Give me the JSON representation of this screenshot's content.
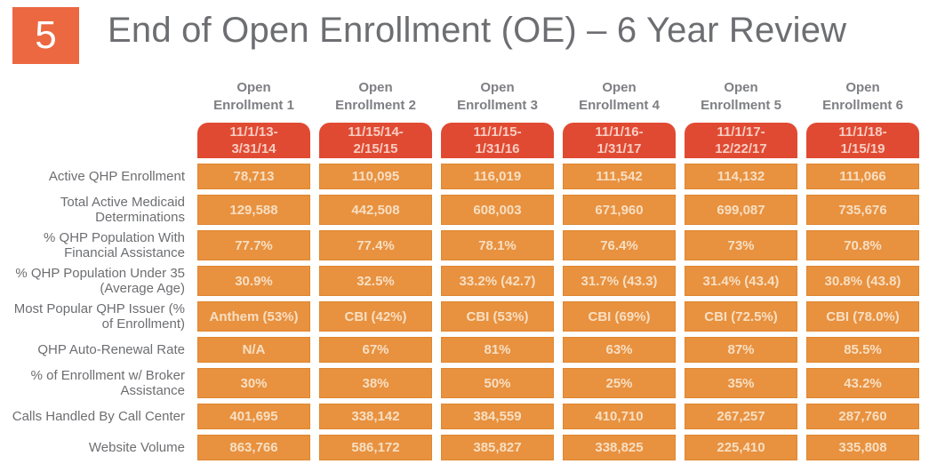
{
  "slide": {
    "number": "5",
    "title": "End of Open Enrollment (OE) – 6 Year Review"
  },
  "table": {
    "columns": [
      {
        "header": "Open\nEnrollment 1",
        "date": "11/1/13-\n3/31/14"
      },
      {
        "header": "Open\nEnrollment 2",
        "date": "11/15/14-\n2/15/15"
      },
      {
        "header": "Open\nEnrollment 3",
        "date": "11/1/15-\n1/31/16"
      },
      {
        "header": "Open\nEnrollment 4",
        "date": "11/1/16-\n1/31/17"
      },
      {
        "header": "Open\nEnrollment 5",
        "date": "11/1/17-\n12/22/17"
      },
      {
        "header": "Open\nEnrollment 6",
        "date": "11/1/18-\n1/15/19"
      }
    ],
    "rows": [
      {
        "label": "Active QHP Enrollment",
        "values": [
          "78,713",
          "110,095",
          "116,019",
          "111,542",
          "114,132",
          "111,066"
        ]
      },
      {
        "label": "Total Active Medicaid Determinations",
        "values": [
          "129,588",
          "442,508",
          "608,003",
          "671,960",
          "699,087",
          "735,676"
        ]
      },
      {
        "label": "% QHP Population With Financial Assistance",
        "values": [
          "77.7%",
          "77.4%",
          "78.1%",
          "76.4%",
          "73%",
          "70.8%"
        ]
      },
      {
        "label": "% QHP Population Under 35 (Average Age)",
        "values": [
          "30.9%",
          "32.5%",
          "33.2% (42.7)",
          "31.7% (43.3)",
          "31.4% (43.4)",
          "30.8% (43.8)"
        ]
      },
      {
        "label": "Most Popular QHP Issuer (% of Enrollment)",
        "values": [
          "Anthem (53%)",
          "CBI (42%)",
          "CBI (53%)",
          "CBI (69%)",
          "CBI (72.5%)",
          "CBI (78.0%)"
        ]
      },
      {
        "label": "QHP Auto-Renewal Rate",
        "values": [
          "N/A",
          "67%",
          "81%",
          "63%",
          "87%",
          "85.5%"
        ]
      },
      {
        "label": "% of Enrollment w/ Broker Assistance",
        "values": [
          "30%",
          "38%",
          "50%",
          "25%",
          "35%",
          "43.2%"
        ]
      },
      {
        "label": "Calls Handled By Call Center",
        "values": [
          "401,695",
          "338,142",
          "384,559",
          "410,710",
          "267,257",
          "287,760"
        ]
      },
      {
        "label": "Website Volume",
        "values": [
          "863,766",
          "586,172",
          "385,827",
          "338,825",
          "225,410",
          "335,808"
        ]
      }
    ]
  },
  "colors": {
    "cell_orange": "#E8913F",
    "date_red": "#E14A32",
    "slide_number_bg": "#EB6841",
    "title_gray": "#6D6E71",
    "header_gray": "#7E7F83"
  }
}
